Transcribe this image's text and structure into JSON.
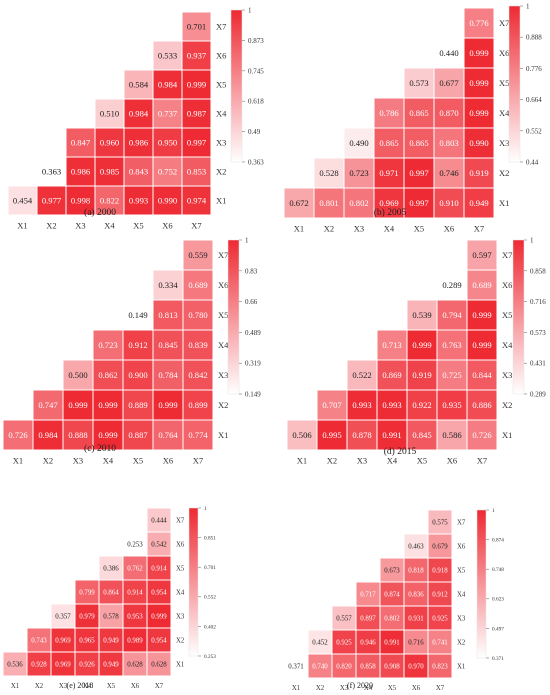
{
  "chart_data": [
    {
      "type": "heatmap",
      "title": "(a) 2000",
      "rows": [
        "X1",
        "X2",
        "X3",
        "X4",
        "X5",
        "X6",
        "X7"
      ],
      "cols": [
        "X1",
        "X2",
        "X3",
        "X4",
        "X5",
        "X6",
        "X7"
      ],
      "values": [
        [
          0.454,
          0.977,
          0.998,
          0.822,
          0.993,
          0.99,
          0.974
        ],
        [
          0.363,
          0.986,
          0.985,
          0.843,
          0.752,
          0.853
        ],
        [
          0.847,
          0.96,
          0.986,
          0.95,
          0.997
        ],
        [
          0.51,
          0.984,
          0.737,
          0.987
        ],
        [
          0.584,
          0.984,
          0.999
        ],
        [
          0.533,
          0.937
        ],
        [
          0.701
        ]
      ],
      "value_labels": [
        [
          "0.454",
          "0.977",
          "0.998",
          "0.822",
          "0.993",
          "0.990",
          "0.974"
        ],
        [
          "0.363",
          "0.986",
          "0.985",
          "0.843",
          "0.752",
          "0.853"
        ],
        [
          "0.847",
          "0.960",
          "0.986",
          "0.950",
          "0.997"
        ],
        [
          "0.510",
          "0.984",
          "0.737",
          "0.987"
        ],
        [
          "0.584",
          "0.984",
          "0.999"
        ],
        [
          "0.533",
          "0.937"
        ],
        [
          "0.701"
        ]
      ],
      "colorbar": {
        "min": 0.363,
        "max": 1,
        "ticks": [
          "1",
          "0.873",
          "0.745",
          "0.618",
          "0.49",
          "0.363"
        ]
      }
    },
    {
      "type": "heatmap",
      "title": "(b) 2005",
      "rows": [
        "X1",
        "X2",
        "X3",
        "X4",
        "X5",
        "X6",
        "X7"
      ],
      "cols": [
        "X1",
        "X2",
        "X3",
        "X4",
        "X5",
        "X6",
        "X7"
      ],
      "values": [
        [
          0.672,
          0.801,
          0.802,
          0.969,
          0.997,
          0.91,
          0.949
        ],
        [
          0.528,
          0.723,
          0.971,
          0.997,
          0.746,
          0.919
        ],
        [
          0.49,
          0.865,
          0.865,
          0.803,
          0.99
        ],
        [
          0.786,
          0.865,
          0.87,
          0.999
        ],
        [
          0.573,
          0.677,
          0.999
        ],
        [
          0.44,
          0.999
        ],
        [
          0.776
        ]
      ],
      "value_labels": [
        [
          "0.672",
          "0.801",
          "0.802",
          "0.969",
          "0.997",
          "0.910",
          "0.949"
        ],
        [
          "0.528",
          "0.723",
          "0.971",
          "0.997",
          "0.746",
          "0.919"
        ],
        [
          "0.490",
          "0.865",
          "0.865",
          "0.803",
          "0.990"
        ],
        [
          "0.786",
          "0.865",
          "0.870",
          "0.999"
        ],
        [
          "0.573",
          "0.677",
          "0.999"
        ],
        [
          "0.440",
          "0.999"
        ],
        [
          "0.776"
        ]
      ],
      "colorbar": {
        "min": 0.44,
        "max": 1,
        "ticks": [
          "1",
          "0.888",
          "0.776",
          "0.664",
          "0.552",
          "0.44"
        ]
      }
    },
    {
      "type": "heatmap",
      "title": "(c) 2010",
      "rows": [
        "X1",
        "X2",
        "X3",
        "X4",
        "X5",
        "X6",
        "X7"
      ],
      "cols": [
        "X1",
        "X2",
        "X3",
        "X4",
        "X5",
        "X6",
        "X7"
      ],
      "values": [
        [
          0.726,
          0.984,
          0.888,
          0.999,
          0.887,
          0.764,
          0.774
        ],
        [
          0.747,
          0.999,
          0.999,
          0.889,
          0.999,
          0.899
        ],
        [
          0.5,
          0.862,
          0.9,
          0.784,
          0.842
        ],
        [
          0.723,
          0.912,
          0.845,
          0.839
        ],
        [
          0.149,
          0.813,
          0.78
        ],
        [
          0.334,
          0.689
        ],
        [
          0.559
        ]
      ],
      "value_labels": [
        [
          "0.726",
          "0.984",
          "0.888",
          "0.999",
          "0.887",
          "0.764",
          "0.774"
        ],
        [
          "0.747",
          "0.999",
          "0.999",
          "0.889",
          "0.999",
          "0.899"
        ],
        [
          "0.500",
          "0.862",
          "0.900",
          "0.784",
          "0.842"
        ],
        [
          "0.723",
          "0.912",
          "0.845",
          "0.839"
        ],
        [
          "0.149",
          "0.813",
          "0.780"
        ],
        [
          "0.334",
          "0.689"
        ],
        [
          "0.559"
        ]
      ],
      "colorbar": {
        "min": 0.149,
        "max": 1,
        "ticks": [
          "1",
          "0.83",
          "0.66",
          "0.489",
          "0.319",
          "0.149"
        ]
      }
    },
    {
      "type": "heatmap",
      "title": "(d) 2015",
      "rows": [
        "X1",
        "X2",
        "X3",
        "X4",
        "X5",
        "X6",
        "X7"
      ],
      "cols": [
        "X1",
        "X2",
        "X3",
        "X4",
        "X5",
        "X6",
        "X7"
      ],
      "values": [
        [
          0.506,
          0.995,
          0.878,
          0.991,
          0.845,
          0.586,
          0.726
        ],
        [
          0.707,
          0.993,
          0.993,
          0.922,
          0.935,
          0.886
        ],
        [
          0.522,
          0.869,
          0.919,
          0.725,
          0.844
        ],
        [
          0.713,
          0.999,
          0.763,
          0.999
        ],
        [
          0.539,
          0.794,
          0.999
        ],
        [
          0.289,
          0.689
        ],
        [
          0.597
        ]
      ],
      "value_labels": [
        [
          "0.506",
          "0.995",
          "0.878",
          "0.991",
          "0.845",
          "0.586",
          "0.726"
        ],
        [
          "0.707",
          "0.993",
          "0.993",
          "0.922",
          "0.935",
          "0.886"
        ],
        [
          "0.522",
          "0.869",
          "0.919",
          "0.725",
          "0.844"
        ],
        [
          "0.713",
          "0.999",
          "0.763",
          "0.999"
        ],
        [
          "0.539",
          "0.794",
          "0.999"
        ],
        [
          "0.289",
          "0.689"
        ],
        [
          "0.597"
        ]
      ],
      "colorbar": {
        "min": 0.289,
        "max": 1,
        "ticks": [
          "1",
          "0.858",
          "0.716",
          "0.573",
          "0.431",
          "0.289"
        ]
      }
    },
    {
      "type": "heatmap",
      "title": "(e) 2018",
      "rows": [
        "X1",
        "X2",
        "X3",
        "X4",
        "X5",
        "X6",
        "X7"
      ],
      "cols": [
        "X1",
        "X2",
        "X3",
        "X4",
        "X5",
        "X6",
        "X7"
      ],
      "values": [
        [
          0.536,
          0.928,
          0.969,
          0.926,
          0.949,
          0.628,
          0.628
        ],
        [
          0.743,
          0.969,
          0.965,
          0.949,
          0.989,
          0.954
        ],
        [
          0.357,
          0.979,
          0.578,
          0.953,
          0.999
        ],
        [
          0.799,
          0.864,
          0.914,
          0.954
        ],
        [
          0.386,
          0.762,
          0.914
        ],
        [
          0.253,
          0.542
        ],
        [
          0.444
        ]
      ],
      "value_labels": [
        [
          "0.536",
          "0.928",
          "0.969",
          "0.926",
          "0.949",
          "0.628",
          "0.628"
        ],
        [
          "0.743",
          "0.969",
          "0.965",
          "0.949",
          "0.989",
          "0.954"
        ],
        [
          "0.357",
          "0.979",
          "0.578",
          "0.953",
          "0.999"
        ],
        [
          "0.799",
          "0.864",
          "0.914",
          "0.954"
        ],
        [
          "0.386",
          "0.762",
          "0.914"
        ],
        [
          "0.253",
          "0.542"
        ],
        [
          "0.444"
        ]
      ],
      "colorbar": {
        "min": 0.253,
        "max": 1,
        "ticks": [
          "1",
          "0.851",
          "0.701",
          "0.552",
          "0.402",
          "0.253"
        ]
      }
    },
    {
      "type": "heatmap",
      "title": "(f) 2020",
      "rows": [
        "X1",
        "X2",
        "X3",
        "X4",
        "X5",
        "X6",
        "X7"
      ],
      "cols": [
        "X1",
        "X2",
        "X3",
        "X4",
        "X5",
        "X6",
        "X7"
      ],
      "values": [
        [
          0.371,
          0.74,
          0.82,
          0.858,
          0.908,
          0.97,
          0.823
        ],
        [
          0.452,
          0.925,
          0.946,
          0.991,
          0.716,
          0.741
        ],
        [
          0.557,
          0.897,
          0.802,
          0.931,
          0.925
        ],
        [
          0.717,
          0.874,
          0.836,
          0.912
        ],
        [
          0.673,
          0.818,
          0.918
        ],
        [
          0.463,
          0.679
        ],
        [
          0.575
        ]
      ],
      "value_labels": [
        [
          "0.371",
          "0.740",
          "0.820",
          "0.858",
          "0.908",
          "0.970",
          "0.823"
        ],
        [
          "0.452",
          "0.925",
          "0.946",
          "0.991",
          "0.716",
          "0.741"
        ],
        [
          "0.557",
          "0.897",
          "0.802",
          "0.931",
          "0.925"
        ],
        [
          "0.717",
          "0.874",
          "0.836",
          "0.912"
        ],
        [
          "0.673",
          "0.818",
          "0.918"
        ],
        [
          "0.463",
          "0.679"
        ],
        [
          "0.575"
        ]
      ],
      "colorbar": {
        "min": 0.371,
        "max": 1,
        "ticks": [
          "1",
          "0.874",
          "0.748",
          "0.623",
          "0.497",
          "0.371"
        ]
      }
    }
  ],
  "colors": {
    "low": "#ffffff",
    "high": "#ee2a33",
    "grid": "#ffffff",
    "text_dark": "#222222",
    "text_light": "#ffffff"
  }
}
